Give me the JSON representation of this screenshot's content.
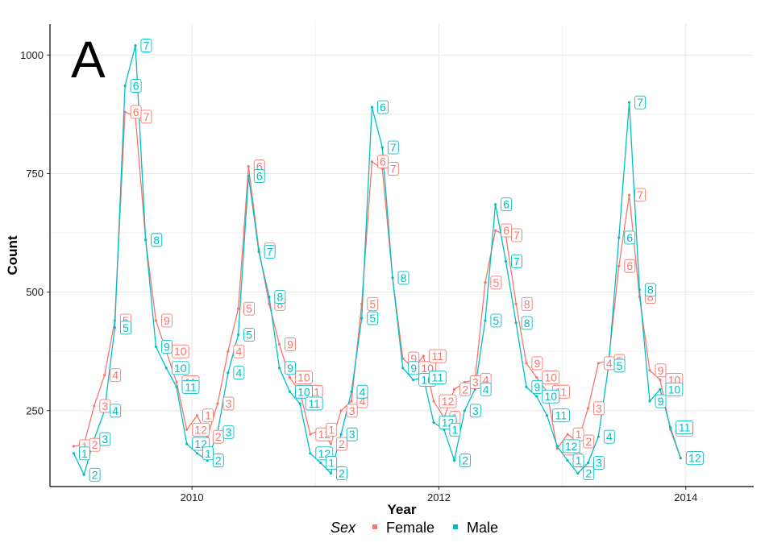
{
  "chart_data": {
    "type": "line",
    "panel_tag": "A",
    "title": "",
    "xlabel": "Year",
    "ylabel": "Count",
    "xlim": [
      2008.85,
      2014.55
    ],
    "ylim": [
      90,
      1065
    ],
    "x_ticks": [
      2010,
      2012,
      2014
    ],
    "x_tick_labels": [
      "2010",
      "2012",
      "2014"
    ],
    "y_ticks": [
      250,
      500,
      750,
      1000
    ],
    "y_tick_labels": [
      "250",
      "500",
      "750",
      "1000"
    ],
    "grid": true,
    "legend": {
      "title": "Sex",
      "position": "bottom"
    },
    "series": [
      {
        "name": "Female",
        "color": "#F8766D",
        "points": [
          {
            "x": 2009.042,
            "y": 175,
            "label": "1"
          },
          {
            "x": 2009.125,
            "y": 178,
            "label": "2"
          },
          {
            "x": 2009.208,
            "y": 260,
            "label": "3"
          },
          {
            "x": 2009.292,
            "y": 325,
            "label": "4"
          },
          {
            "x": 2009.375,
            "y": 440,
            "label": "5"
          },
          {
            "x": 2009.458,
            "y": 880,
            "label": "6"
          },
          {
            "x": 2009.542,
            "y": 870,
            "label": "7"
          },
          {
            "x": 2009.625,
            "y": 610,
            "label": "8"
          },
          {
            "x": 2009.708,
            "y": 440,
            "label": "9"
          },
          {
            "x": 2009.792,
            "y": 375,
            "label": "10"
          },
          {
            "x": 2009.875,
            "y": 310,
            "label": "11"
          },
          {
            "x": 2009.958,
            "y": 210,
            "label": "12"
          },
          {
            "x": 2010.042,
            "y": 240,
            "label": "1"
          },
          {
            "x": 2010.125,
            "y": 195,
            "label": "2"
          },
          {
            "x": 2010.208,
            "y": 265,
            "label": "3"
          },
          {
            "x": 2010.292,
            "y": 375,
            "label": "4"
          },
          {
            "x": 2010.375,
            "y": 465,
            "label": "5"
          },
          {
            "x": 2010.458,
            "y": 765,
            "label": "6"
          },
          {
            "x": 2010.542,
            "y": 590,
            "label": "7"
          },
          {
            "x": 2010.625,
            "y": 475,
            "label": "8"
          },
          {
            "x": 2010.708,
            "y": 390,
            "label": "9"
          },
          {
            "x": 2010.792,
            "y": 320,
            "label": "10"
          },
          {
            "x": 2010.875,
            "y": 290,
            "label": "11"
          },
          {
            "x": 2010.958,
            "y": 200,
            "label": "12"
          },
          {
            "x": 2011.042,
            "y": 210,
            "label": "1"
          },
          {
            "x": 2011.125,
            "y": 180,
            "label": "2"
          },
          {
            "x": 2011.208,
            "y": 250,
            "label": "3"
          },
          {
            "x": 2011.292,
            "y": 270,
            "label": "4"
          },
          {
            "x": 2011.375,
            "y": 475,
            "label": "5"
          },
          {
            "x": 2011.458,
            "y": 775,
            "label": "6"
          },
          {
            "x": 2011.542,
            "y": 760,
            "label": "7"
          },
          {
            "x": 2011.625,
            "y": 530,
            "label": "8"
          },
          {
            "x": 2011.708,
            "y": 360,
            "label": "9"
          },
          {
            "x": 2011.792,
            "y": 340,
            "label": "10"
          },
          {
            "x": 2011.875,
            "y": 365,
            "label": "11"
          },
          {
            "x": 2011.958,
            "y": 270,
            "label": "12"
          },
          {
            "x": 2012.042,
            "y": 235,
            "label": "1"
          },
          {
            "x": 2012.125,
            "y": 295,
            "label": "2"
          },
          {
            "x": 2012.208,
            "y": 310,
            "label": "3"
          },
          {
            "x": 2012.292,
            "y": 315,
            "label": "4"
          },
          {
            "x": 2012.375,
            "y": 520,
            "label": "5"
          },
          {
            "x": 2012.458,
            "y": 630,
            "label": "6"
          },
          {
            "x": 2012.542,
            "y": 620,
            "label": "7"
          },
          {
            "x": 2012.625,
            "y": 475,
            "label": "8"
          },
          {
            "x": 2012.708,
            "y": 350,
            "label": "9"
          },
          {
            "x": 2012.792,
            "y": 320,
            "label": "10"
          },
          {
            "x": 2012.875,
            "y": 290,
            "label": "11"
          },
          {
            "x": 2012.958,
            "y": 170,
            "label": "12"
          },
          {
            "x": 2013.042,
            "y": 200,
            "label": "1"
          },
          {
            "x": 2013.125,
            "y": 185,
            "label": "2"
          },
          {
            "x": 2013.208,
            "y": 255,
            "label": "3"
          },
          {
            "x": 2013.292,
            "y": 350,
            "label": "4"
          },
          {
            "x": 2013.375,
            "y": 355,
            "label": "5"
          },
          {
            "x": 2013.458,
            "y": 555,
            "label": "6"
          },
          {
            "x": 2013.542,
            "y": 705,
            "label": "7"
          },
          {
            "x": 2013.625,
            "y": 490,
            "label": "8"
          },
          {
            "x": 2013.708,
            "y": 335,
            "label": "9"
          },
          {
            "x": 2013.792,
            "y": 315,
            "label": "10"
          },
          {
            "x": 2013.875,
            "y": 210,
            "label": "11"
          },
          {
            "x": 2013.958,
            "y": 150,
            "label": "12"
          }
        ]
      },
      {
        "name": "Male",
        "color": "#00BFC4",
        "points": [
          {
            "x": 2009.042,
            "y": 160,
            "label": "1"
          },
          {
            "x": 2009.125,
            "y": 115,
            "label": "2"
          },
          {
            "x": 2009.208,
            "y": 190,
            "label": "3"
          },
          {
            "x": 2009.292,
            "y": 250,
            "label": "4"
          },
          {
            "x": 2009.375,
            "y": 425,
            "label": "5"
          },
          {
            "x": 2009.458,
            "y": 935,
            "label": "6"
          },
          {
            "x": 2009.542,
            "y": 1020,
            "label": "7"
          },
          {
            "x": 2009.625,
            "y": 610,
            "label": "8"
          },
          {
            "x": 2009.708,
            "y": 385,
            "label": "9"
          },
          {
            "x": 2009.792,
            "y": 340,
            "label": "10"
          },
          {
            "x": 2009.875,
            "y": 300,
            "label": "11"
          },
          {
            "x": 2009.958,
            "y": 180,
            "label": "12"
          },
          {
            "x": 2010.042,
            "y": 160,
            "label": "1"
          },
          {
            "x": 2010.125,
            "y": 145,
            "label": "2"
          },
          {
            "x": 2010.208,
            "y": 205,
            "label": "3"
          },
          {
            "x": 2010.292,
            "y": 330,
            "label": "4"
          },
          {
            "x": 2010.375,
            "y": 410,
            "label": "5"
          },
          {
            "x": 2010.458,
            "y": 745,
            "label": "6"
          },
          {
            "x": 2010.542,
            "y": 585,
            "label": "7"
          },
          {
            "x": 2010.625,
            "y": 490,
            "label": "8"
          },
          {
            "x": 2010.708,
            "y": 340,
            "label": "9"
          },
          {
            "x": 2010.792,
            "y": 290,
            "label": "10"
          },
          {
            "x": 2010.875,
            "y": 265,
            "label": "11"
          },
          {
            "x": 2010.958,
            "y": 160,
            "label": "12"
          },
          {
            "x": 2011.042,
            "y": 140,
            "label": "1"
          },
          {
            "x": 2011.125,
            "y": 118,
            "label": "2"
          },
          {
            "x": 2011.208,
            "y": 200,
            "label": "3"
          },
          {
            "x": 2011.292,
            "y": 290,
            "label": "4"
          },
          {
            "x": 2011.375,
            "y": 445,
            "label": "5"
          },
          {
            "x": 2011.458,
            "y": 890,
            "label": "6"
          },
          {
            "x": 2011.542,
            "y": 805,
            "label": "7"
          },
          {
            "x": 2011.625,
            "y": 530,
            "label": "8"
          },
          {
            "x": 2011.708,
            "y": 340,
            "label": "9"
          },
          {
            "x": 2011.792,
            "y": 315,
            "label": "10"
          },
          {
            "x": 2011.875,
            "y": 320,
            "label": "11"
          },
          {
            "x": 2011.958,
            "y": 225,
            "label": "12"
          },
          {
            "x": 2012.042,
            "y": 210,
            "label": "1"
          },
          {
            "x": 2012.125,
            "y": 145,
            "label": "2"
          },
          {
            "x": 2012.208,
            "y": 250,
            "label": "3"
          },
          {
            "x": 2012.292,
            "y": 295,
            "label": "4"
          },
          {
            "x": 2012.375,
            "y": 440,
            "label": "5"
          },
          {
            "x": 2012.458,
            "y": 685,
            "label": "6"
          },
          {
            "x": 2012.542,
            "y": 565,
            "label": "7"
          },
          {
            "x": 2012.625,
            "y": 435,
            "label": "8"
          },
          {
            "x": 2012.708,
            "y": 300,
            "label": "9"
          },
          {
            "x": 2012.792,
            "y": 280,
            "label": "10"
          },
          {
            "x": 2012.875,
            "y": 240,
            "label": "11"
          },
          {
            "x": 2012.958,
            "y": 175,
            "label": "12"
          },
          {
            "x": 2013.042,
            "y": 145,
            "label": "1"
          },
          {
            "x": 2013.125,
            "y": 118,
            "label": "2"
          },
          {
            "x": 2013.208,
            "y": 140,
            "label": "3"
          },
          {
            "x": 2013.292,
            "y": 195,
            "label": "4"
          },
          {
            "x": 2013.375,
            "y": 345,
            "label": "5"
          },
          {
            "x": 2013.458,
            "y": 615,
            "label": "6"
          },
          {
            "x": 2013.542,
            "y": 900,
            "label": "7"
          },
          {
            "x": 2013.625,
            "y": 505,
            "label": "8"
          },
          {
            "x": 2013.708,
            "y": 270,
            "label": "9"
          },
          {
            "x": 2013.792,
            "y": 295,
            "label": "10"
          },
          {
            "x": 2013.875,
            "y": 215,
            "label": "11"
          },
          {
            "x": 2013.958,
            "y": 150,
            "label": "12"
          }
        ]
      }
    ]
  }
}
